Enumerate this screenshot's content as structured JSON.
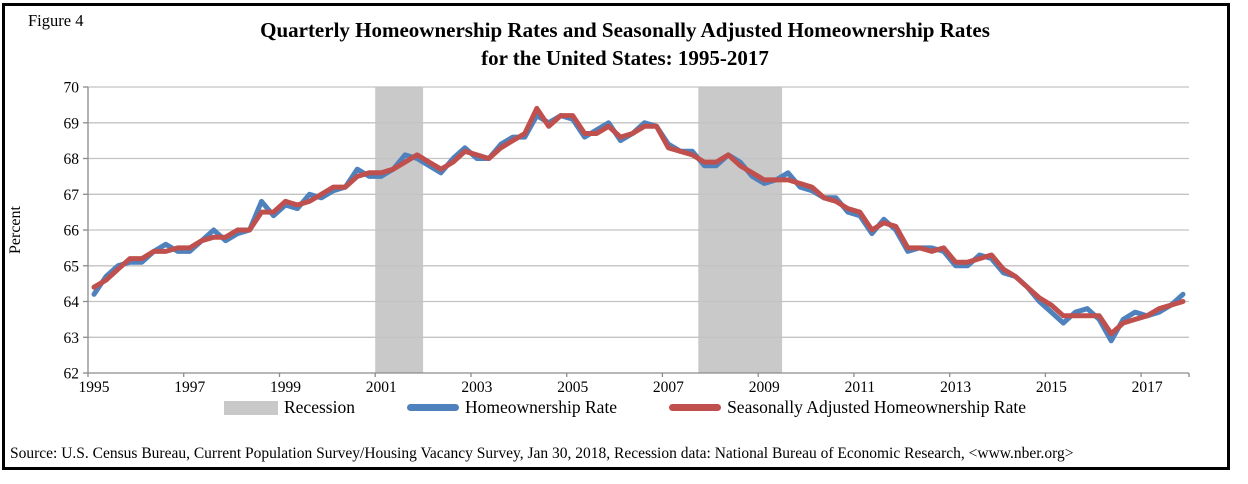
{
  "figure_label": "Figure 4",
  "title_line1": "Quarterly Homeownership Rates and Seasonally Adjusted Homeownership Rates",
  "title_line2": "for the United States: 1995-2017",
  "source": "Source: U.S. Census Bureau, Current Population Survey/Housing Vacancy Survey, Jan 30, 2018, Recession data: National Bureau of Economic Research, <www.nber.org>",
  "legend": {
    "recession": "Recession",
    "homeownership_rate": "Homeownership Rate",
    "seasonally_adjusted": "Seasonally Adjusted Homeownership Rate"
  },
  "chart_data": {
    "type": "line",
    "title": "Quarterly Homeownership Rates and Seasonally Adjusted Homeownership Rates for the United States: 1995-2017",
    "xlabel": "",
    "ylabel": "Percent",
    "ylim": [
      62,
      70
    ],
    "grid": true,
    "legend_position": "bottom",
    "yticks": [
      "70",
      "69",
      "68",
      "67",
      "66",
      "65",
      "64",
      "63",
      "62"
    ],
    "xticks": [
      "1995",
      "1997",
      "1999",
      "2001",
      "2003",
      "2005",
      "2007",
      "2009",
      "2011",
      "2013",
      "2015",
      "2017"
    ],
    "categories": [
      "1995 Q1",
      "1995 Q2",
      "1995 Q3",
      "1995 Q4",
      "1996 Q1",
      "1996 Q2",
      "1996 Q3",
      "1996 Q4",
      "1997 Q1",
      "1997 Q2",
      "1997 Q3",
      "1997 Q4",
      "1998 Q1",
      "1998 Q2",
      "1998 Q3",
      "1998 Q4",
      "1999 Q1",
      "1999 Q2",
      "1999 Q3",
      "1999 Q4",
      "2000 Q1",
      "2000 Q2",
      "2000 Q3",
      "2000 Q4",
      "2001 Q1",
      "2001 Q2",
      "2001 Q3",
      "2001 Q4",
      "2002 Q1",
      "2002 Q2",
      "2002 Q3",
      "2002 Q4",
      "2003 Q1",
      "2003 Q2",
      "2003 Q3",
      "2003 Q4",
      "2004 Q1",
      "2004 Q2",
      "2004 Q3",
      "2004 Q4",
      "2005 Q1",
      "2005 Q2",
      "2005 Q3",
      "2005 Q4",
      "2006 Q1",
      "2006 Q2",
      "2006 Q3",
      "2006 Q4",
      "2007 Q1",
      "2007 Q2",
      "2007 Q3",
      "2007 Q4",
      "2008 Q1",
      "2008 Q2",
      "2008 Q3",
      "2008 Q4",
      "2009 Q1",
      "2009 Q2",
      "2009 Q3",
      "2009 Q4",
      "2010 Q1",
      "2010 Q2",
      "2010 Q3",
      "2010 Q4",
      "2011 Q1",
      "2011 Q2",
      "2011 Q3",
      "2011 Q4",
      "2012 Q1",
      "2012 Q2",
      "2012 Q3",
      "2012 Q4",
      "2013 Q1",
      "2013 Q2",
      "2013 Q3",
      "2013 Q4",
      "2014 Q1",
      "2014 Q2",
      "2014 Q3",
      "2014 Q4",
      "2015 Q1",
      "2015 Q2",
      "2015 Q3",
      "2015 Q4",
      "2016 Q1",
      "2016 Q2",
      "2016 Q3",
      "2016 Q4",
      "2017 Q1",
      "2017 Q2",
      "2017 Q3",
      "2017 Q4"
    ],
    "series": [
      {
        "name": "Homeownership Rate",
        "color": "#4F81BD",
        "values": [
          64.2,
          64.7,
          65.0,
          65.1,
          65.1,
          65.4,
          65.6,
          65.4,
          65.4,
          65.7,
          66.0,
          65.7,
          65.9,
          66.0,
          66.8,
          66.4,
          66.7,
          66.6,
          67.0,
          66.9,
          67.1,
          67.2,
          67.7,
          67.5,
          67.5,
          67.7,
          68.1,
          68.0,
          67.8,
          67.6,
          68.0,
          68.3,
          68.0,
          68.0,
          68.4,
          68.6,
          68.6,
          69.2,
          69.0,
          69.2,
          69.1,
          68.6,
          68.8,
          69.0,
          68.5,
          68.7,
          69.0,
          68.9,
          68.4,
          68.2,
          68.2,
          67.8,
          67.8,
          68.1,
          67.9,
          67.5,
          67.3,
          67.4,
          67.6,
          67.2,
          67.1,
          66.9,
          66.9,
          66.5,
          66.4,
          65.9,
          66.3,
          66.0,
          65.4,
          65.5,
          65.5,
          65.4,
          65.0,
          65.0,
          65.3,
          65.2,
          64.8,
          64.7,
          64.4,
          64.0,
          63.7,
          63.4,
          63.7,
          63.8,
          63.5,
          62.9,
          63.5,
          63.7,
          63.6,
          63.7,
          63.9,
          64.2
        ]
      },
      {
        "name": "Seasonally Adjusted Homeownership Rate",
        "color": "#C0504D",
        "values": [
          64.4,
          64.6,
          64.9,
          65.2,
          65.2,
          65.4,
          65.4,
          65.5,
          65.5,
          65.7,
          65.8,
          65.8,
          66.0,
          66.0,
          66.5,
          66.5,
          66.8,
          66.7,
          66.8,
          67.0,
          67.2,
          67.2,
          67.5,
          67.6,
          67.6,
          67.7,
          67.9,
          68.1,
          67.9,
          67.7,
          67.9,
          68.2,
          68.1,
          68.0,
          68.3,
          68.5,
          68.7,
          69.4,
          68.9,
          69.2,
          69.2,
          68.7,
          68.7,
          68.9,
          68.6,
          68.7,
          68.9,
          68.9,
          68.3,
          68.2,
          68.1,
          67.9,
          67.9,
          68.1,
          67.8,
          67.6,
          67.4,
          67.4,
          67.4,
          67.3,
          67.2,
          66.9,
          66.8,
          66.6,
          66.5,
          66.0,
          66.2,
          66.1,
          65.5,
          65.5,
          65.4,
          65.5,
          65.1,
          65.1,
          65.2,
          65.3,
          64.9,
          64.7,
          64.4,
          64.1,
          63.9,
          63.6,
          63.6,
          63.6,
          63.6,
          63.1,
          63.4,
          63.5,
          63.6,
          63.8,
          63.9,
          64.0
        ]
      }
    ],
    "recessions": [
      {
        "label": "Recession",
        "start": "2001 Q1",
        "end": "2001 Q4"
      },
      {
        "label": "Recession",
        "start": "2007 Q4",
        "end": "2009 Q2"
      }
    ],
    "colors": {
      "recession_band": "#C9C9C9",
      "gridline": "#C3C3C3",
      "axis": "#8C8C8C",
      "series_blue": "#4F81BD",
      "series_red": "#C0504D"
    }
  }
}
